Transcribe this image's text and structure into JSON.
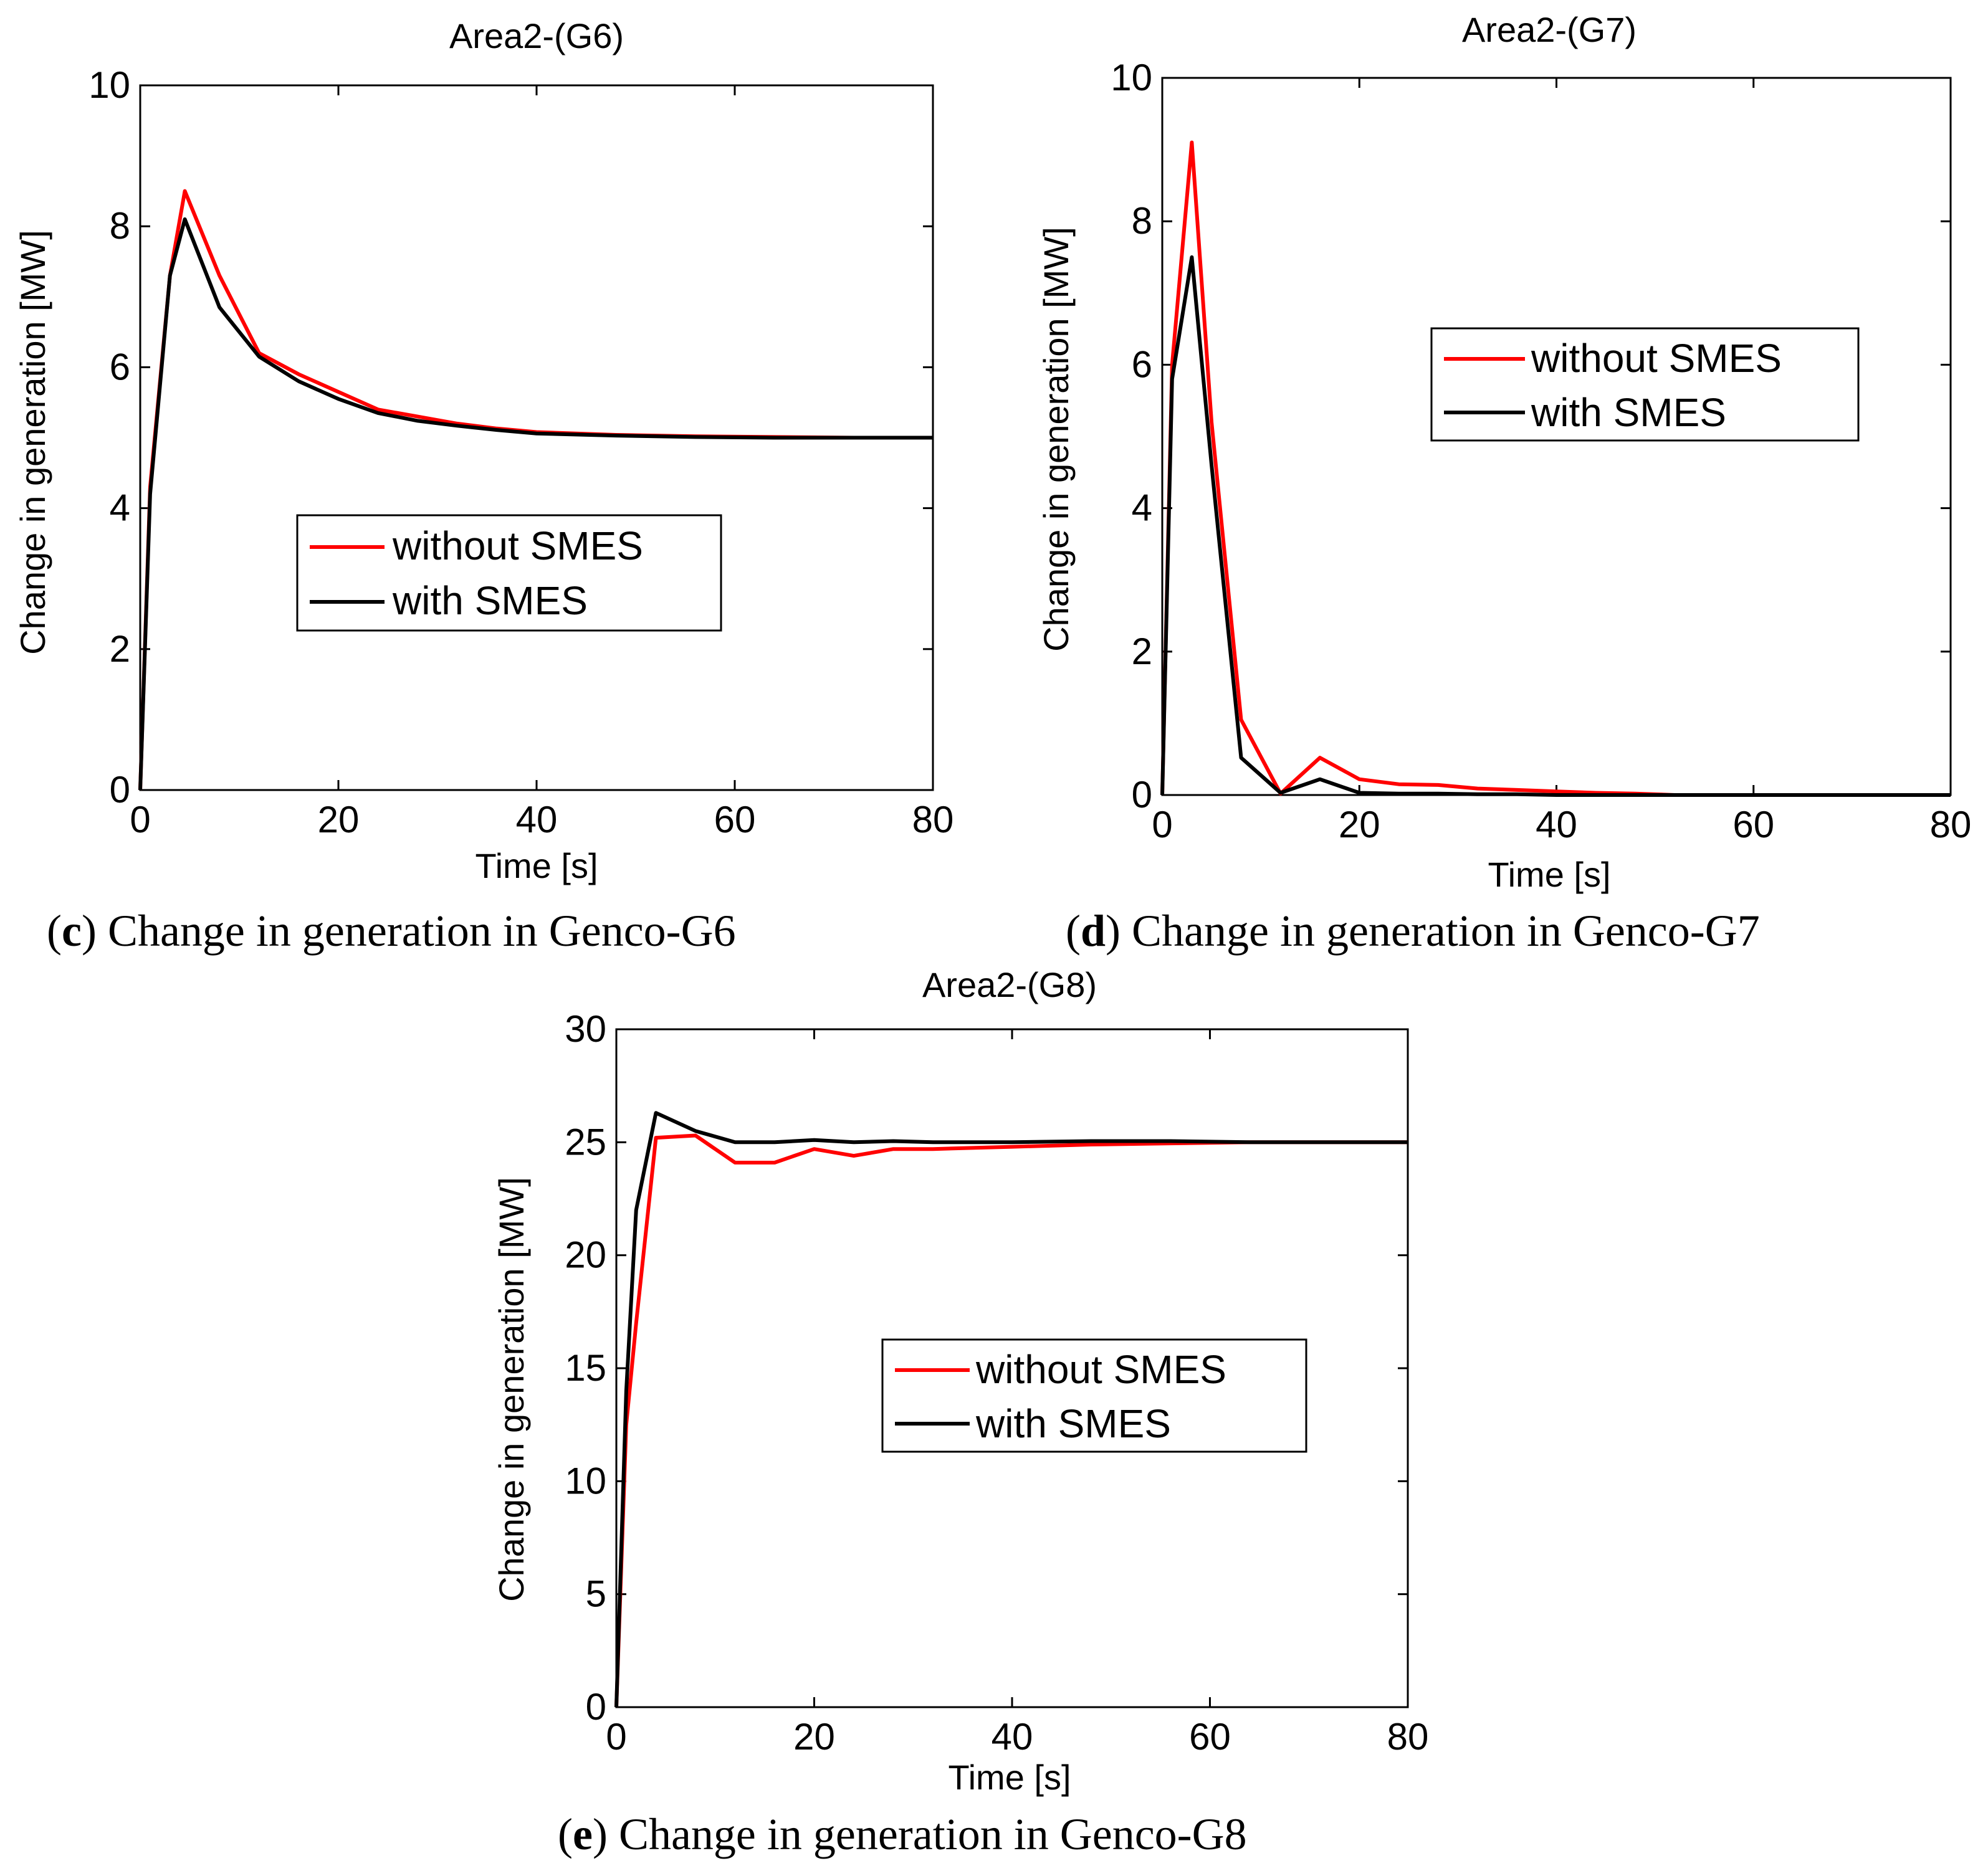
{
  "chart_data": [
    {
      "type": "line",
      "id": "g6",
      "title": "Area2-(G6)",
      "xlabel": "Time [s]",
      "ylabel": "Change in generation [MW]",
      "xlim": [
        0,
        80
      ],
      "ylim": [
        0,
        10
      ],
      "xticks": [
        0,
        20,
        40,
        60,
        80
      ],
      "yticks": [
        0,
        2,
        4,
        6,
        8,
        10
      ],
      "grid": false,
      "legend_position": "center",
      "caption": {
        "letter": "c",
        "text": "Change in generation in Genco-G6"
      },
      "series": [
        {
          "name": "without SMES",
          "color": "#ff0000",
          "x": [
            0,
            1,
            3,
            4.5,
            8,
            12,
            16,
            20,
            24,
            28,
            32,
            36,
            40,
            48,
            56,
            64,
            72,
            80
          ],
          "y": [
            0,
            4.3,
            7.3,
            8.5,
            7.3,
            6.2,
            5.9,
            5.65,
            5.4,
            5.3,
            5.2,
            5.13,
            5.08,
            5.04,
            5.02,
            5.01,
            5.0,
            5.0
          ]
        },
        {
          "name": "with SMES",
          "color": "#000000",
          "x": [
            0,
            1,
            3,
            4.5,
            8,
            12,
            16,
            20,
            24,
            28,
            32,
            36,
            40,
            48,
            56,
            64,
            72,
            80
          ],
          "y": [
            0,
            4.2,
            7.3,
            8.1,
            6.85,
            6.15,
            5.8,
            5.55,
            5.35,
            5.24,
            5.17,
            5.11,
            5.06,
            5.03,
            5.01,
            5.0,
            5.0,
            5.0
          ]
        }
      ]
    },
    {
      "type": "line",
      "id": "g7",
      "title": "Area2-(G7)",
      "xlabel": "Time [s]",
      "ylabel": "Change in generation [MW]",
      "xlim": [
        0,
        80
      ],
      "ylim": [
        0,
        10
      ],
      "xticks": [
        0,
        20,
        40,
        60,
        80
      ],
      "yticks": [
        0,
        2,
        4,
        6,
        8,
        10
      ],
      "grid": false,
      "legend_position": "top-right",
      "caption": {
        "letter": "d",
        "text": "Change in generation in Genco-G7"
      },
      "series": [
        {
          "name": "without SMES",
          "color": "#ff0000",
          "x": [
            0,
            1,
            3,
            5,
            8,
            12,
            16,
            20,
            24,
            28,
            32,
            36,
            40,
            44,
            48,
            52,
            60,
            70,
            80
          ],
          "y": [
            0,
            6.0,
            9.1,
            5.2,
            1.05,
            0.02,
            0.52,
            0.22,
            0.15,
            0.14,
            0.09,
            0.07,
            0.05,
            0.03,
            0.02,
            0.0,
            0.0,
            0.0,
            0.0
          ]
        },
        {
          "name": "with SMES",
          "color": "#000000",
          "x": [
            0,
            1,
            3,
            5,
            8,
            12,
            16,
            20,
            24,
            28,
            32,
            36,
            40,
            50,
            60,
            70,
            80
          ],
          "y": [
            0,
            5.8,
            7.5,
            4.6,
            0.52,
            0.03,
            0.22,
            0.03,
            0.02,
            0.02,
            0.01,
            0.01,
            0.0,
            0.0,
            0.0,
            0.0,
            0.0
          ]
        }
      ]
    },
    {
      "type": "line",
      "id": "g8",
      "title": "Area2-(G8)",
      "xlabel": "Time [s]",
      "ylabel": "Change in generation [MW]",
      "xlim": [
        0,
        80
      ],
      "ylim": [
        0,
        30
      ],
      "xticks": [
        0,
        20,
        40,
        60,
        80
      ],
      "yticks": [
        0,
        5,
        10,
        15,
        20,
        25,
        30
      ],
      "grid": false,
      "legend_position": "center-right",
      "caption": {
        "letter": "e",
        "text": "Change in generation in Genco-G8"
      },
      "series": [
        {
          "name": "without SMES",
          "color": "#ff0000",
          "x": [
            0,
            1,
            2,
            4,
            8,
            12,
            16,
            20,
            24,
            28,
            32,
            36,
            40,
            48,
            56,
            64,
            72,
            80
          ],
          "y": [
            0,
            12.5,
            17.0,
            25.2,
            25.3,
            24.1,
            24.1,
            24.7,
            24.4,
            24.7,
            24.7,
            24.75,
            24.8,
            24.9,
            24.95,
            25.0,
            25.0,
            25.0
          ]
        },
        {
          "name": "with SMES",
          "color": "#000000",
          "x": [
            0,
            1,
            2,
            4,
            8,
            12,
            16,
            20,
            24,
            28,
            32,
            40,
            48,
            56,
            64,
            72,
            80
          ],
          "y": [
            0,
            14.0,
            22.0,
            26.3,
            25.5,
            25.0,
            25.0,
            25.1,
            25.0,
            25.05,
            25.0,
            25.0,
            25.05,
            25.05,
            25.0,
            25.0,
            25.0
          ]
        }
      ]
    }
  ]
}
